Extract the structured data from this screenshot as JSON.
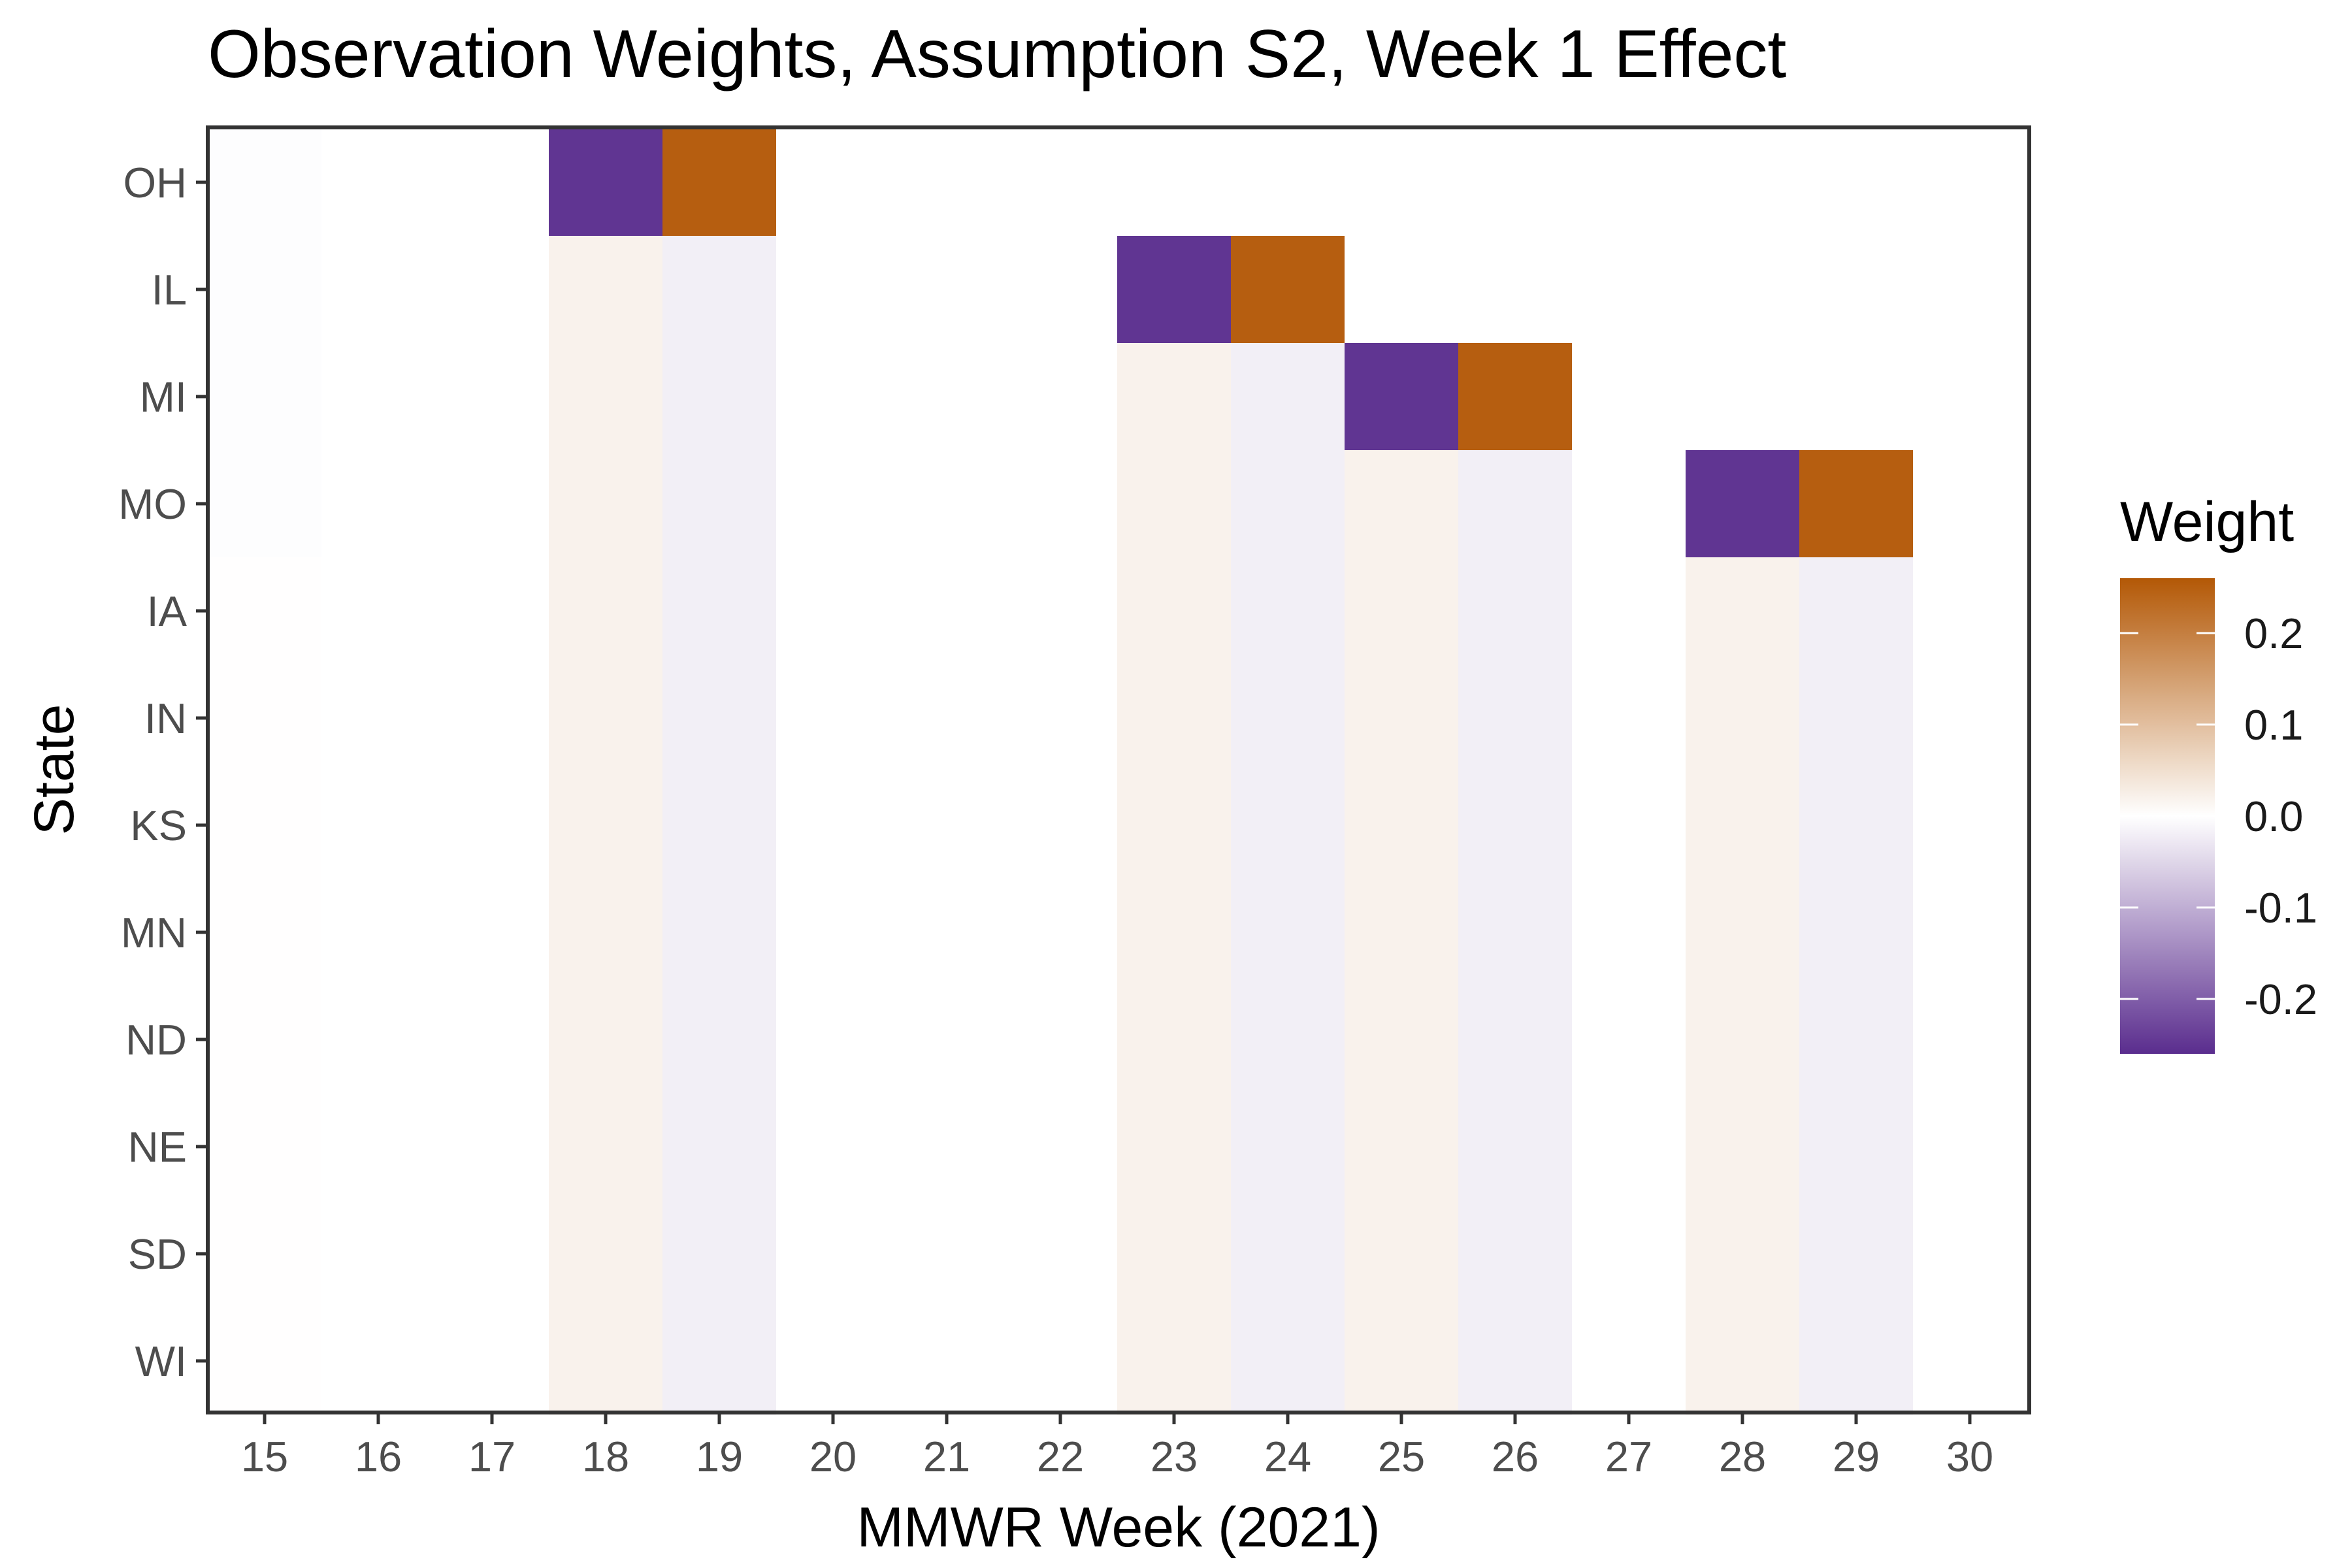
{
  "chart_data": {
    "type": "heatmap",
    "title": "Observation Weights, Assumption S2, Week 1 Effect",
    "xlabel": "MMWR Week (2021)",
    "ylabel": "State",
    "x": [
      "15",
      "16",
      "17",
      "18",
      "19",
      "20",
      "21",
      "22",
      "23",
      "24",
      "25",
      "26",
      "27",
      "28",
      "29",
      "30"
    ],
    "y": [
      "OH",
      "IL",
      "MI",
      "MO",
      "IA",
      "IN",
      "KS",
      "MN",
      "ND",
      "NE",
      "SD",
      "WI"
    ],
    "values": [
      [
        -0.003,
        0,
        0,
        -0.25,
        0.25,
        0,
        0,
        0,
        0,
        0,
        0,
        0,
        0,
        0,
        0,
        0
      ],
      [
        -0.003,
        0,
        0,
        0.02,
        -0.02,
        0,
        0,
        0,
        -0.25,
        0.25,
        0,
        0,
        0,
        0,
        0,
        0
      ],
      [
        -0.003,
        0,
        0,
        0.02,
        -0.02,
        0,
        0,
        0,
        0.02,
        -0.02,
        -0.25,
        0.25,
        0,
        0,
        0,
        0
      ],
      [
        -0.003,
        0,
        0,
        0.02,
        -0.02,
        0,
        0,
        0,
        0.02,
        -0.02,
        0.02,
        -0.02,
        0,
        -0.25,
        0.25,
        0
      ],
      [
        0.001,
        0,
        0,
        0.02,
        -0.02,
        0,
        0,
        0,
        0.02,
        -0.02,
        0.02,
        -0.02,
        0,
        0.02,
        -0.02,
        0
      ],
      [
        0.001,
        0,
        0,
        0.02,
        -0.02,
        0,
        0,
        0,
        0.02,
        -0.02,
        0.02,
        -0.02,
        0,
        0.02,
        -0.02,
        0
      ],
      [
        0.001,
        0,
        0,
        0.02,
        -0.02,
        0,
        0,
        0,
        0.02,
        -0.02,
        0.02,
        -0.02,
        0,
        0.02,
        -0.02,
        0
      ],
      [
        0.001,
        0,
        0,
        0.02,
        -0.02,
        0,
        0,
        0,
        0.02,
        -0.02,
        0.02,
        -0.02,
        0,
        0.02,
        -0.02,
        0
      ],
      [
        0.001,
        0,
        0,
        0.02,
        -0.02,
        0,
        0,
        0,
        0.02,
        -0.02,
        0.02,
        -0.02,
        0,
        0.02,
        -0.02,
        0
      ],
      [
        0.001,
        0,
        0,
        0.02,
        -0.02,
        0,
        0,
        0,
        0.02,
        -0.02,
        0.02,
        -0.02,
        0,
        0.02,
        -0.02,
        0
      ],
      [
        0.001,
        0,
        0,
        0.02,
        -0.02,
        0,
        0,
        0,
        0.02,
        -0.02,
        0.02,
        -0.02,
        0,
        0.02,
        -0.02,
        0
      ],
      [
        0.001,
        0,
        0,
        0.02,
        -0.02,
        0,
        0,
        0,
        0.02,
        -0.02,
        0.02,
        -0.02,
        0,
        0.02,
        -0.02,
        0
      ]
    ],
    "legend": {
      "title": "Weight",
      "ticks": [
        "0.2",
        "0.1",
        "0.0",
        "-0.1",
        "-0.2"
      ],
      "tick_values": [
        0.2,
        0.1,
        0.0,
        -0.1,
        -0.2
      ],
      "limits": [
        -0.26,
        0.26
      ],
      "placement": "right"
    },
    "colors": {
      "negative": "#5a2d8e",
      "zero": "#ffffff",
      "positive": "#b35806"
    }
  }
}
